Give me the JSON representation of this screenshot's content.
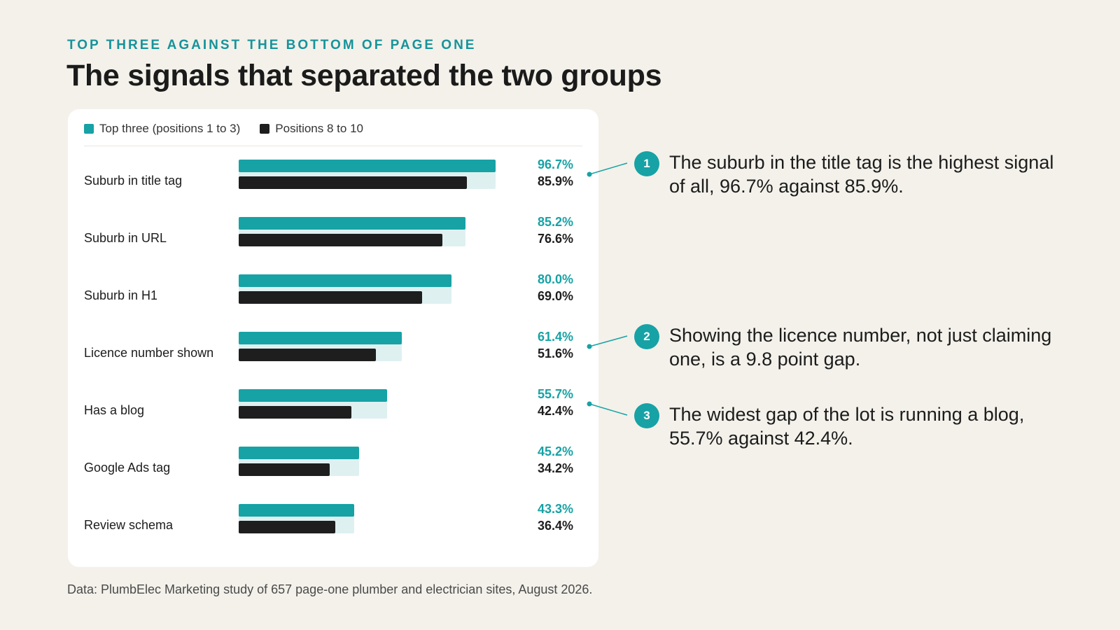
{
  "eyebrow": "TOP THREE AGAINST THE BOTTOM OF PAGE ONE",
  "title": "The signals that separated the two groups",
  "legend": {
    "top": "Top three (positions 1 to 3)",
    "bottom": "Positions 8 to 10"
  },
  "colors": {
    "top": "#17a2a5",
    "bottom": "#1e1e1e",
    "track": "#dff0f1"
  },
  "chart_data": {
    "type": "bar",
    "orientation": "horizontal",
    "categories": [
      "Suburb in title tag",
      "Suburb in URL",
      "Suburb in H1",
      "Licence number shown",
      "Has a blog",
      "Google Ads tag",
      "Review schema"
    ],
    "series": [
      {
        "name": "Top three (positions 1 to 3)",
        "values": [
          96.7,
          85.2,
          80.0,
          61.4,
          55.7,
          45.2,
          43.3
        ],
        "labels": [
          "96.7%",
          "85.2%",
          "80.0%",
          "61.4%",
          "55.7%",
          "45.2%",
          "43.3%"
        ]
      },
      {
        "name": "Positions 8 to 10",
        "values": [
          85.9,
          76.6,
          69.0,
          51.6,
          42.4,
          34.2,
          36.4
        ],
        "labels": [
          "85.9%",
          "76.6%",
          "69.0%",
          "51.6%",
          "42.4%",
          "34.2%",
          "36.4%"
        ]
      }
    ],
    "xlim": [
      0,
      100
    ],
    "grid": false,
    "legend_position": "top-left"
  },
  "notes": [
    {
      "num": "1",
      "text": "The suburb in the title tag is the highest signal of all, 96.7% against 85.9%.",
      "row": 0
    },
    {
      "num": "2",
      "text": "Showing the licence number, not just claiming one, is a 9.8 point gap.",
      "row": 3
    },
    {
      "num": "3",
      "text": "The widest gap of the lot is running a blog, 55.7% against 42.4%.",
      "row": 4
    }
  ],
  "source": "Data: PlumbElec Marketing study of 657 page-one plumber and electrician sites, August 2026."
}
